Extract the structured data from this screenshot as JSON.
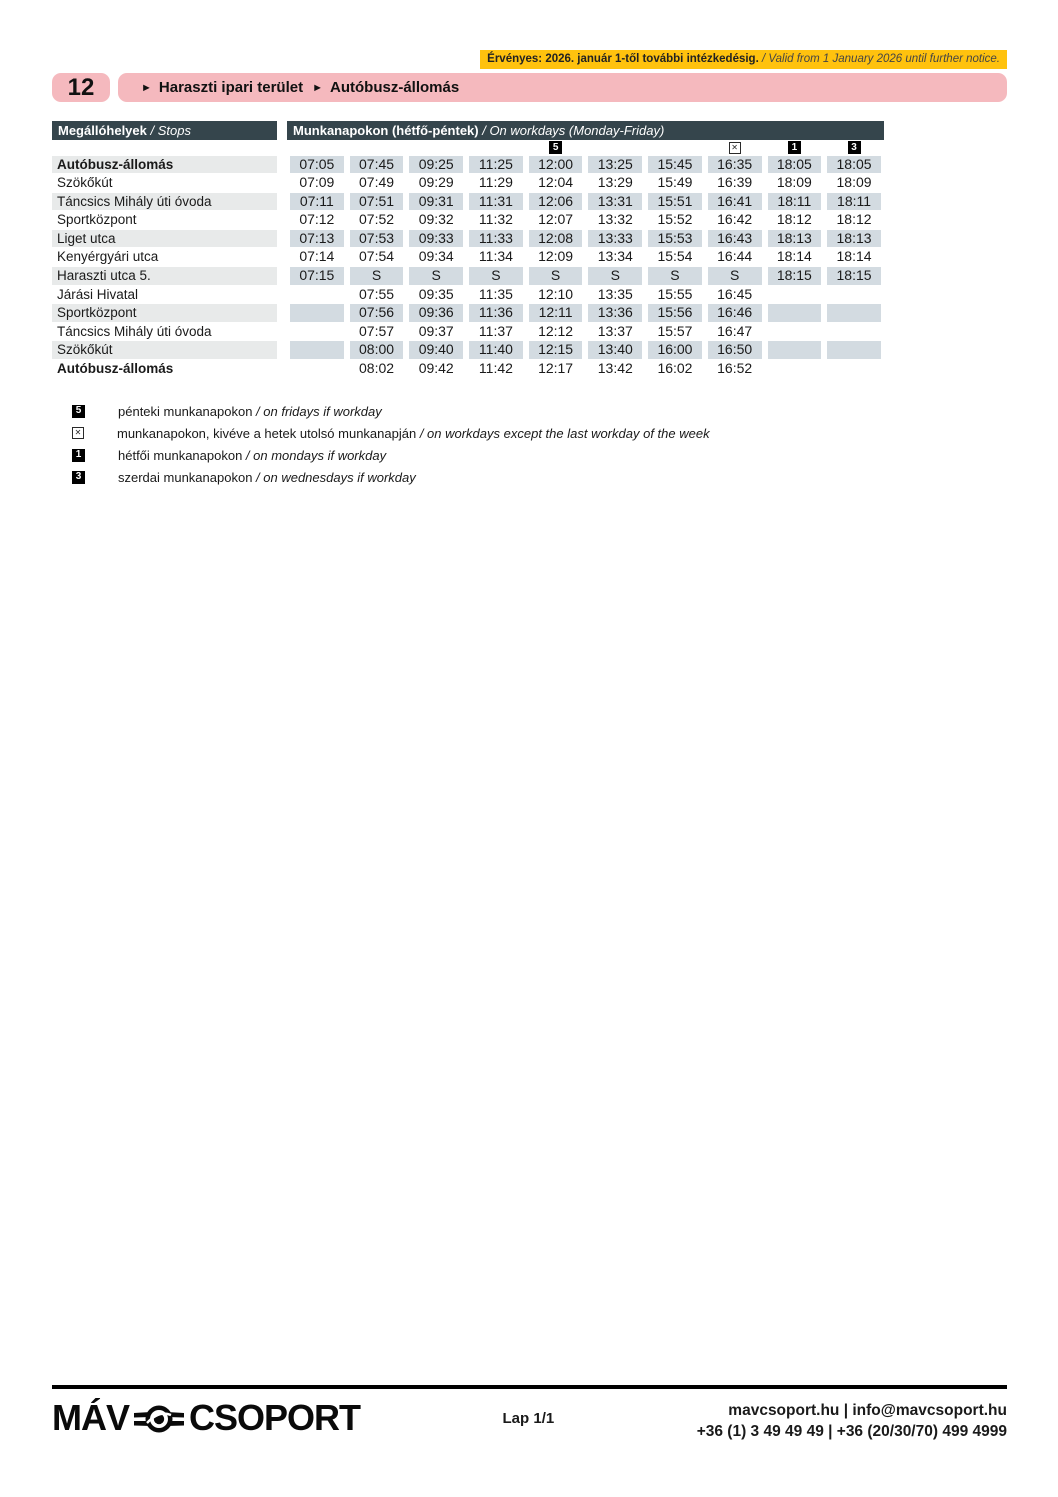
{
  "banner": {
    "text_hu": "Érvényes: 2026. január 1-től további intézkedésig.",
    "text_en": " / Valid from 1 January 2026 until further notice."
  },
  "route_header": {
    "number": "12",
    "arrow": "►",
    "from": "Haraszti ipari terület",
    "to": "Autóbusz-állomás"
  },
  "table_header": {
    "stops_hu": "Megállóhelyek",
    "stops_en": " / Stops",
    "days_hu": "Munkanapokon (hétfő-péntek)",
    "days_en": " / On workdays (Monday-Friday)"
  },
  "column_symbols": [
    {
      "col": 5,
      "glyph": "5",
      "style": "filled",
      "name": "boxed-5-symbol"
    },
    {
      "col": 8,
      "glyph": "✕",
      "style": "outlined",
      "name": "boxed-x-symbol"
    },
    {
      "col": 9,
      "glyph": "1",
      "style": "filled",
      "name": "boxed-1-symbol"
    },
    {
      "col": 10,
      "glyph": "3",
      "style": "filled",
      "name": "boxed-3-symbol"
    }
  ],
  "rows": [
    {
      "stop": "Autóbusz-állomás",
      "bold": true,
      "times": [
        "07:05",
        "07:45",
        "09:25",
        "11:25",
        "12:00",
        "13:25",
        "15:45",
        "16:35",
        "18:05",
        "18:05"
      ]
    },
    {
      "stop": "Szökőkút",
      "bold": false,
      "times": [
        "07:09",
        "07:49",
        "09:29",
        "11:29",
        "12:04",
        "13:29",
        "15:49",
        "16:39",
        "18:09",
        "18:09"
      ]
    },
    {
      "stop": "Táncsics Mihály úti óvoda",
      "bold": false,
      "times": [
        "07:11",
        "07:51",
        "09:31",
        "11:31",
        "12:06",
        "13:31",
        "15:51",
        "16:41",
        "18:11",
        "18:11"
      ]
    },
    {
      "stop": "Sportközpont",
      "bold": false,
      "times": [
        "07:12",
        "07:52",
        "09:32",
        "11:32",
        "12:07",
        "13:32",
        "15:52",
        "16:42",
        "18:12",
        "18:12"
      ]
    },
    {
      "stop": "Liget utca",
      "bold": false,
      "times": [
        "07:13",
        "07:53",
        "09:33",
        "11:33",
        "12:08",
        "13:33",
        "15:53",
        "16:43",
        "18:13",
        "18:13"
      ]
    },
    {
      "stop": "Kenyérgyári utca",
      "bold": false,
      "times": [
        "07:14",
        "07:54",
        "09:34",
        "11:34",
        "12:09",
        "13:34",
        "15:54",
        "16:44",
        "18:14",
        "18:14"
      ]
    },
    {
      "stop": "Haraszti utca 5.",
      "bold": false,
      "times": [
        "07:15",
        "S",
        "S",
        "S",
        "S",
        "S",
        "S",
        "S",
        "18:15",
        "18:15"
      ]
    },
    {
      "stop": "Járási Hivatal",
      "bold": false,
      "times": [
        "",
        "07:55",
        "09:35",
        "11:35",
        "12:10",
        "13:35",
        "15:55",
        "16:45",
        "",
        ""
      ]
    },
    {
      "stop": "Sportközpont",
      "bold": false,
      "times": [
        "",
        "07:56",
        "09:36",
        "11:36",
        "12:11",
        "13:36",
        "15:56",
        "16:46",
        "",
        ""
      ]
    },
    {
      "stop": "Táncsics Mihály úti óvoda",
      "bold": false,
      "times": [
        "",
        "07:57",
        "09:37",
        "11:37",
        "12:12",
        "13:37",
        "15:57",
        "16:47",
        "",
        ""
      ]
    },
    {
      "stop": "Szökőkút",
      "bold": false,
      "times": [
        "",
        "08:00",
        "09:40",
        "11:40",
        "12:15",
        "13:40",
        "16:00",
        "16:50",
        "",
        ""
      ]
    },
    {
      "stop": "Autóbusz-állomás",
      "bold": true,
      "times": [
        "",
        "08:02",
        "09:42",
        "11:42",
        "12:17",
        "13:42",
        "16:02",
        "16:52",
        "",
        ""
      ]
    }
  ],
  "legend": [
    {
      "glyph": "5",
      "style": "filled",
      "name": "boxed-5-symbol",
      "hu": "pénteki munkanapokon",
      "en": " / on fridays if workday"
    },
    {
      "glyph": "✕",
      "style": "outlined",
      "name": "boxed-x-symbol",
      "hu": "munkanapokon, kivéve a hetek utolsó munkanapján",
      "en": " / on workdays except the last workday of the week"
    },
    {
      "glyph": "1",
      "style": "filled",
      "name": "boxed-1-symbol",
      "hu": "hétfői munkanapokon",
      "en": " / on mondays if workday"
    },
    {
      "glyph": "3",
      "style": "filled",
      "name": "boxed-3-symbol",
      "hu": "szerdai munkanapokon",
      "en": " / on wednesdays if workday"
    }
  ],
  "footer": {
    "logo_left": "MÁV",
    "logo_right": "CSOPORT",
    "page": "Lap 1/1",
    "web": "mavcsoport.hu | info@mavcsoport.hu",
    "phone": "+36 (1) 3 49 49 49 | +36 (20/30/70) 499 4999"
  },
  "colors": {
    "yellow": "#ffc20e",
    "pink": "#f5b9be",
    "dark": "#35454c",
    "stripe_name": "#e8eaea",
    "stripe_time": "#d3dbe1"
  }
}
